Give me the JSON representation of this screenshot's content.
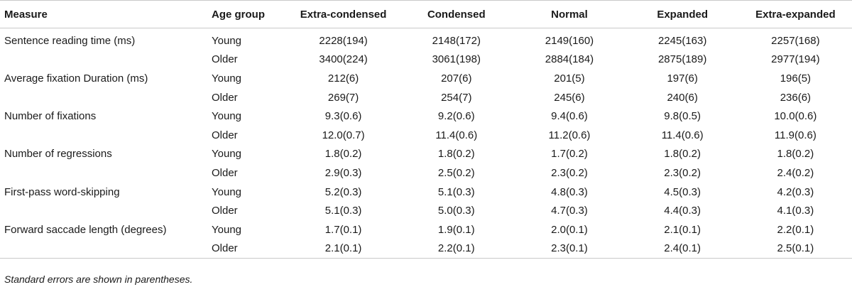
{
  "table": {
    "headers": [
      "Measure",
      "Age group",
      "Extra-condensed",
      "Condensed",
      "Normal",
      "Expanded",
      "Extra-expanded"
    ],
    "rows": [
      {
        "measure": "Sentence reading time (ms)",
        "age": "Young",
        "values": [
          "2228(194)",
          "2148(172)",
          "2149(160)",
          "2245(163)",
          "2257(168)"
        ]
      },
      {
        "measure": "",
        "age": "Older",
        "values": [
          "3400(224)",
          "3061(198)",
          "2884(184)",
          "2875(189)",
          "2977(194)"
        ]
      },
      {
        "measure": "Average fixation Duration (ms)",
        "age": "Young",
        "values": [
          "212(6)",
          "207(6)",
          "201(5)",
          "197(6)",
          "196(5)"
        ]
      },
      {
        "measure": "",
        "age": "Older",
        "values": [
          "269(7)",
          "254(7)",
          "245(6)",
          "240(6)",
          "236(6)"
        ]
      },
      {
        "measure": "Number of fixations",
        "age": "Young",
        "values": [
          "9.3(0.6)",
          "9.2(0.6)",
          "9.4(0.6)",
          "9.8(0.5)",
          "10.0(0.6)"
        ]
      },
      {
        "measure": "",
        "age": "Older",
        "values": [
          "12.0(0.7)",
          "11.4(0.6)",
          "11.2(0.6)",
          "11.4(0.6)",
          "11.9(0.6)"
        ]
      },
      {
        "measure": "Number of regressions",
        "age": "Young",
        "values": [
          "1.8(0.2)",
          "1.8(0.2)",
          "1.7(0.2)",
          "1.8(0.2)",
          "1.8(0.2)"
        ]
      },
      {
        "measure": "",
        "age": "Older",
        "values": [
          "2.9(0.3)",
          "2.5(0.2)",
          "2.3(0.2)",
          "2.3(0.2)",
          "2.4(0.2)"
        ]
      },
      {
        "measure": "First-pass word-skipping",
        "age": "Young",
        "values": [
          "5.2(0.3)",
          "5.1(0.3)",
          "4.8(0.3)",
          "4.5(0.3)",
          "4.2(0.3)"
        ]
      },
      {
        "measure": "",
        "age": "Older",
        "values": [
          "5.1(0.3)",
          "5.0(0.3)",
          "4.7(0.3)",
          "4.4(0.3)",
          "4.1(0.3)"
        ]
      },
      {
        "measure": "Forward saccade length (degrees)",
        "age": "Young",
        "values": [
          "1.7(0.1)",
          "1.9(0.1)",
          "2.0(0.1)",
          "2.1(0.1)",
          "2.2(0.1)"
        ]
      },
      {
        "measure": "",
        "age": "Older",
        "values": [
          "2.1(0.1)",
          "2.2(0.1)",
          "2.3(0.1)",
          "2.4(0.1)",
          "2.5(0.1)"
        ]
      }
    ]
  },
  "footnote": "Standard errors are shown in parentheses."
}
